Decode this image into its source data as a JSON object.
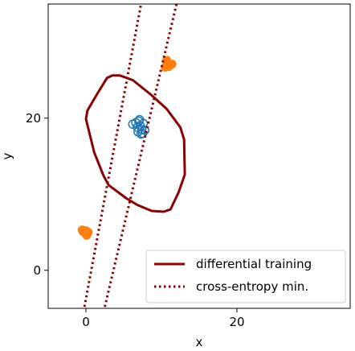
{
  "chart_data": {
    "type": "scatter",
    "xlabel": "x",
    "ylabel": "y",
    "xlim": [
      -5,
      35
    ],
    "ylim": [
      -5,
      35
    ],
    "xticks": [
      0,
      20
    ],
    "yticks": [
      0,
      20
    ],
    "tick_labels": {
      "x": [
        "0",
        "20"
      ],
      "y": [
        "0",
        "20"
      ]
    },
    "grid": false,
    "legend_placement": "lower-right",
    "series": [
      {
        "name": "differential training",
        "kind": "closed-curve",
        "style": "solid",
        "color": "#8b0000",
        "points": [
          [
            4.5,
            25.6
          ],
          [
            6.2,
            25.0
          ],
          [
            8.6,
            23.1
          ],
          [
            10.7,
            21.2
          ],
          [
            12.5,
            18.8
          ],
          [
            13.0,
            17.2
          ],
          [
            13.1,
            12.6
          ],
          [
            12.3,
            10.3
          ],
          [
            11.2,
            8.0
          ],
          [
            10.3,
            7.7
          ],
          [
            8.7,
            7.8
          ],
          [
            6.8,
            8.6
          ],
          [
            5.3,
            9.5
          ],
          [
            3.0,
            11.2
          ],
          [
            2.3,
            12.5
          ],
          [
            1.1,
            15.5
          ],
          [
            0.0,
            19.9
          ],
          [
            0.2,
            21.0
          ],
          [
            1.5,
            23.2
          ],
          [
            2.8,
            25.3
          ],
          [
            3.5,
            25.6
          ],
          [
            4.5,
            25.6
          ]
        ]
      },
      {
        "name": "cross-entropy min.",
        "kind": "line",
        "style": "dotted",
        "color": "#8b0000",
        "lines": [
          [
            [
              -0.2,
              -4.8
            ],
            [
              7.3,
              35.0
            ]
          ],
          [
            [
              2.5,
              -4.8
            ],
            [
              12.0,
              35.0
            ]
          ]
        ]
      },
      {
        "kind": "points",
        "color": "#ff7f0e",
        "style": "filled",
        "points": [
          [
            -0.5,
            5.3
          ],
          [
            0.0,
            5.2
          ],
          [
            0.2,
            4.8
          ],
          [
            -0.2,
            5.0
          ],
          [
            0.3,
            5.0
          ],
          [
            0.1,
            4.6
          ],
          [
            -0.4,
            5.1
          ],
          [
            10.8,
            27.3
          ],
          [
            11.2,
            27.0
          ],
          [
            10.5,
            26.7
          ],
          [
            11.0,
            26.8
          ],
          [
            11.4,
            27.1
          ],
          [
            10.7,
            27.6
          ]
        ]
      },
      {
        "kind": "points",
        "color": "#1f77b4",
        "style": "hollow",
        "points": [
          [
            6.2,
            19.2
          ],
          [
            6.6,
            19.4
          ],
          [
            6.8,
            18.8
          ],
          [
            7.0,
            19.6
          ],
          [
            7.2,
            19.0
          ],
          [
            7.4,
            18.5
          ],
          [
            7.6,
            19.3
          ],
          [
            7.3,
            17.9
          ],
          [
            7.8,
            18.4
          ],
          [
            6.9,
            18.2
          ],
          [
            7.1,
            19.8
          ],
          [
            7.5,
            18.0
          ]
        ]
      }
    ]
  }
}
